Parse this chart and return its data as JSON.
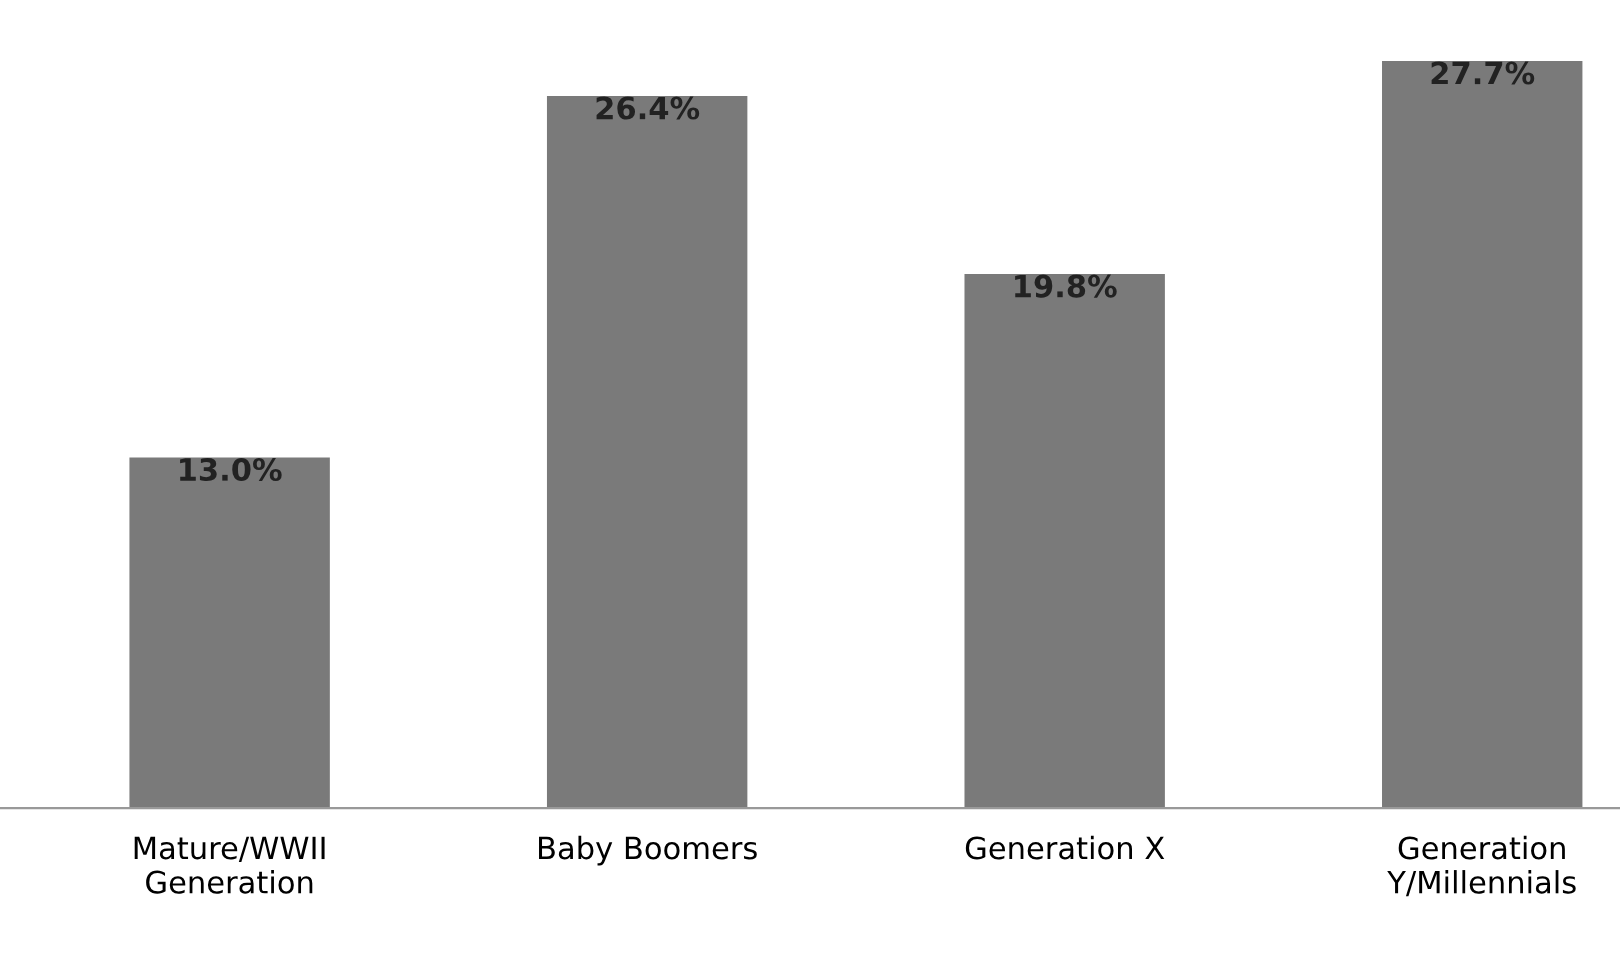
{
  "chart_data": {
    "type": "bar",
    "categories": [
      "Mature/WWII\nGeneration",
      "Baby Boomers",
      "Generation X",
      "Generation\nY/Millennials"
    ],
    "values": [
      13.0,
      26.4,
      19.8,
      27.7
    ],
    "value_labels": [
      "13.0%",
      "26.4%",
      "19.8%",
      "27.7%"
    ],
    "color": "#7a7a7a",
    "tick_labels": "x",
    "grid": false
  }
}
